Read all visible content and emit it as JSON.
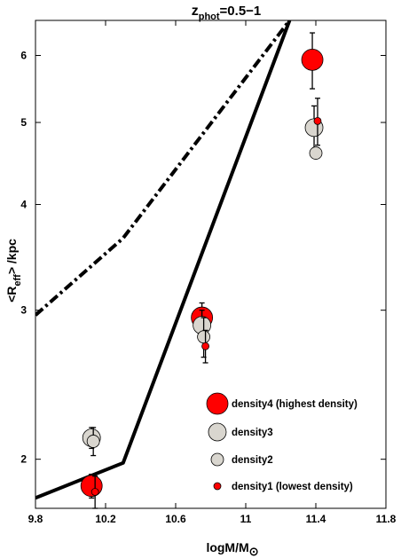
{
  "chart_data": {
    "type": "scatter",
    "title": {
      "main": "z",
      "sub": "phot",
      "tail": "=0.5−1"
    },
    "xlabel": {
      "main": "logM/M",
      "sym": "⊙"
    },
    "ylabel": {
      "a": "<R",
      "sub": "eff",
      "b": "> /kpc"
    },
    "xlim": [
      9.8,
      11.8
    ],
    "ylim": [
      1.75,
      6.6
    ],
    "yscale": "log",
    "xticks": [
      9.8,
      10.2,
      10.6,
      11,
      11.4,
      11.8
    ],
    "xtick_labels": [
      "9.8",
      "10.2",
      "10.6",
      "11",
      "11.4",
      "11.8"
    ],
    "yticks": [
      2,
      3,
      4,
      5,
      6
    ],
    "ytick_labels": [
      "2",
      "3",
      "4",
      "5",
      "6"
    ],
    "grid": false,
    "legend_position": "lower-right",
    "series": [
      {
        "name": "density4 (highest density)",
        "color": "#ff0000",
        "size": 12,
        "points": [
          {
            "x": 10.12,
            "y": 1.86,
            "err": 0.06
          },
          {
            "x": 10.75,
            "y": 2.94,
            "err": 0.12
          },
          {
            "x": 11.38,
            "y": 5.93,
            "err": 0.45
          }
        ]
      },
      {
        "name": "density3",
        "color": "#d9d6cf",
        "size": 10,
        "points": [
          {
            "x": 10.12,
            "y": 2.12,
            "err": 0.06
          },
          {
            "x": 10.75,
            "y": 2.88,
            "err": 0.12
          },
          {
            "x": 11.39,
            "y": 4.93,
            "err": 0.3
          }
        ]
      },
      {
        "name": "density2",
        "color": "#d9d6cf",
        "size": 7,
        "points": [
          {
            "x": 10.13,
            "y": 2.1,
            "err": 0.08
          },
          {
            "x": 10.76,
            "y": 2.79,
            "err": 0.15
          },
          {
            "x": 11.4,
            "y": 4.6,
            "err": 0.06
          }
        ]
      },
      {
        "name": "density1 (lowest density)",
        "color": "#ff0000",
        "size": 4,
        "points": [
          {
            "x": 10.14,
            "y": 1.83,
            "err": 0.08
          },
          {
            "x": 10.77,
            "y": 2.72,
            "err": 0.12
          },
          {
            "x": 11.41,
            "y": 5.02,
            "err": 0.32
          }
        ]
      }
    ],
    "lines": [
      {
        "style": "solid",
        "points": [
          [
            9.8,
            1.8
          ],
          [
            10.3,
            1.98
          ],
          [
            11.25,
            6.6
          ]
        ]
      },
      {
        "style": "dash-dot",
        "points": [
          [
            9.8,
            2.96
          ],
          [
            10.3,
            3.65
          ],
          [
            11.25,
            6.6
          ]
        ]
      }
    ]
  }
}
